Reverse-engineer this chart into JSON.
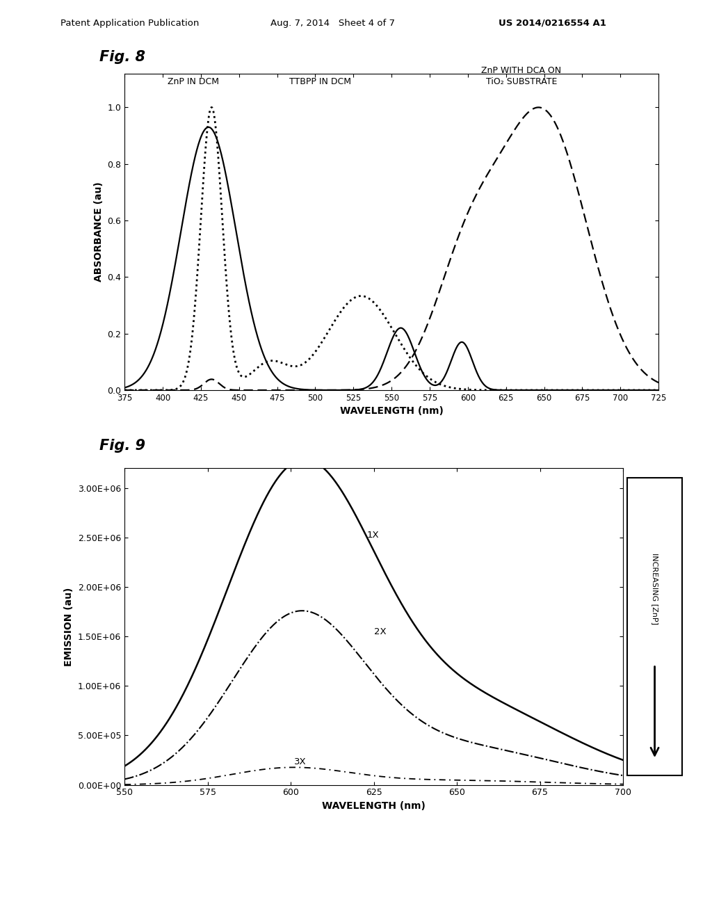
{
  "fig8": {
    "title": "Fig. 8",
    "xlabel": "WAVELENGTH (nm)",
    "ylabel": "ABSORBANCE (au)",
    "xlim": [
      375,
      725
    ],
    "ylim": [
      0,
      1.12
    ],
    "yticks": [
      0,
      0.2,
      0.4,
      0.6,
      0.8,
      1.0
    ],
    "xticks": [
      375,
      400,
      425,
      450,
      475,
      500,
      525,
      550,
      575,
      600,
      625,
      650,
      675,
      700,
      725
    ],
    "label1": "ZnP IN DCM",
    "label2": "TTBPP IN DCM",
    "label3": "ZnP WITH DCA ON\nTiO₂ SUBSTRATE"
  },
  "fig9": {
    "title": "Fig. 9",
    "xlabel": "WAVELENGTH (nm)",
    "ylabel": "EMISSION (au)",
    "xlim": [
      550,
      700
    ],
    "ylim": [
      0,
      3200000.0
    ],
    "xticks": [
      550,
      575,
      600,
      625,
      650,
      675,
      700
    ],
    "label1": "1X",
    "label2": "2X",
    "label3": "3X",
    "arrow_label": "INCREASING [ZnP]"
  },
  "page_header_left": "Patent Application Publication",
  "page_header_mid": "Aug. 7, 2014   Sheet 4 of 7",
  "page_header_right": "US 2014/0216554 A1",
  "fig8_label": "Fig. 8",
  "fig9_label": "Fig. 9"
}
